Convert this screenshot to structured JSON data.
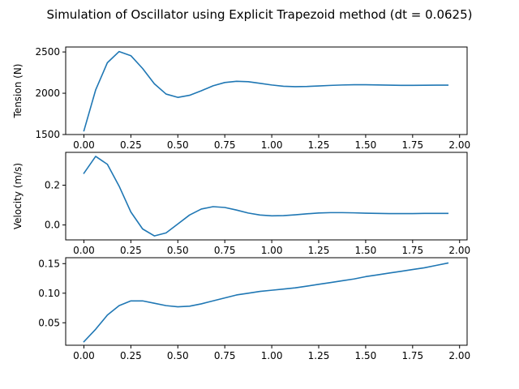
{
  "figure_title": "Simulation of Oscillator using Explicit Trapezoid method (dt = 0.0625)",
  "line_color": "#1f77b4",
  "chart_data": [
    {
      "type": "line",
      "ylabel": "Tension (N)",
      "xlim": [
        -0.097,
        2.04
      ],
      "ylim": [
        1500,
        2560
      ],
      "xticks": [
        0.0,
        0.25,
        0.5,
        0.75,
        1.0,
        1.25,
        1.5,
        1.75,
        2.0
      ],
      "xtick_labels": [
        "0.00",
        "0.25",
        "0.50",
        "0.75",
        "1.00",
        "1.25",
        "1.50",
        "1.75",
        "2.00"
      ],
      "yticks": [
        1500,
        2000,
        2500
      ],
      "ytick_labels": [
        "1500",
        "2000",
        "2500"
      ],
      "grid": false,
      "series": [
        {
          "x": [
            0.0,
            0.0625,
            0.125,
            0.1875,
            0.25,
            0.3125,
            0.375,
            0.4375,
            0.5,
            0.5625,
            0.625,
            0.6875,
            0.75,
            0.8125,
            0.875,
            0.9375,
            1.0,
            1.0625,
            1.125,
            1.1875,
            1.25,
            1.3125,
            1.375,
            1.4375,
            1.5,
            1.5625,
            1.625,
            1.6875,
            1.75,
            1.8125,
            1.875,
            1.9375
          ],
          "y": [
            1545,
            2040,
            2370,
            2505,
            2455,
            2300,
            2115,
            1990,
            1950,
            1975,
            2030,
            2090,
            2130,
            2145,
            2140,
            2120,
            2100,
            2085,
            2080,
            2082,
            2088,
            2095,
            2100,
            2103,
            2103,
            2101,
            2098,
            2096,
            2096,
            2097,
            2098,
            2098
          ]
        }
      ]
    },
    {
      "type": "line",
      "ylabel": "Velocity (m/s)",
      "xlim": [
        -0.097,
        2.04
      ],
      "ylim": [
        -0.075,
        0.365
      ],
      "xticks": [
        0.0,
        0.25,
        0.5,
        0.75,
        1.0,
        1.25,
        1.5,
        1.75,
        2.0
      ],
      "xtick_labels": [
        "0.00",
        "0.25",
        "0.50",
        "0.75",
        "1.00",
        "1.25",
        "1.50",
        "1.75",
        "2.00"
      ],
      "yticks": [
        0.0,
        0.2
      ],
      "ytick_labels": [
        "0.0",
        "0.2"
      ],
      "grid": false,
      "series": [
        {
          "x": [
            0.0,
            0.0625,
            0.125,
            0.1875,
            0.25,
            0.3125,
            0.375,
            0.4375,
            0.5,
            0.5625,
            0.625,
            0.6875,
            0.75,
            0.8125,
            0.875,
            0.9375,
            1.0,
            1.0625,
            1.125,
            1.1875,
            1.25,
            1.3125,
            1.375,
            1.4375,
            1.5,
            1.5625,
            1.625,
            1.6875,
            1.75,
            1.8125,
            1.875,
            1.9375
          ],
          "y": [
            0.26,
            0.345,
            0.305,
            0.195,
            0.065,
            -0.02,
            -0.055,
            -0.04,
            0.005,
            0.05,
            0.08,
            0.092,
            0.088,
            0.075,
            0.06,
            0.05,
            0.046,
            0.047,
            0.051,
            0.056,
            0.06,
            0.062,
            0.062,
            0.061,
            0.059,
            0.058,
            0.057,
            0.057,
            0.057,
            0.058,
            0.058,
            0.058
          ]
        }
      ]
    },
    {
      "type": "line",
      "ylabel": "",
      "xlim": [
        -0.097,
        2.04
      ],
      "ylim": [
        0.012,
        0.16
      ],
      "xticks": [
        0.0,
        0.25,
        0.5,
        0.75,
        1.0,
        1.25,
        1.5,
        1.75,
        2.0
      ],
      "xtick_labels": [
        "0.00",
        "0.25",
        "0.50",
        "0.75",
        "1.00",
        "1.25",
        "1.50",
        "1.75",
        "2.00"
      ],
      "yticks": [
        0.05,
        0.1,
        0.15
      ],
      "ytick_labels": [
        "0.05",
        "0.10",
        "0.15"
      ],
      "grid": false,
      "series": [
        {
          "x": [
            0.0,
            0.0625,
            0.125,
            0.1875,
            0.25,
            0.3125,
            0.375,
            0.4375,
            0.5,
            0.5625,
            0.625,
            0.6875,
            0.75,
            0.8125,
            0.875,
            0.9375,
            1.0,
            1.0625,
            1.125,
            1.1875,
            1.25,
            1.3125,
            1.375,
            1.4375,
            1.5,
            1.5625,
            1.625,
            1.6875,
            1.75,
            1.8125,
            1.875,
            1.9375
          ],
          "y": [
            0.018,
            0.039,
            0.063,
            0.079,
            0.087,
            0.087,
            0.083,
            0.079,
            0.077,
            0.078,
            0.082,
            0.087,
            0.092,
            0.097,
            0.1,
            0.103,
            0.105,
            0.107,
            0.109,
            0.112,
            0.115,
            0.118,
            0.121,
            0.124,
            0.128,
            0.131,
            0.134,
            0.137,
            0.14,
            0.143,
            0.147,
            0.151
          ]
        }
      ]
    }
  ]
}
